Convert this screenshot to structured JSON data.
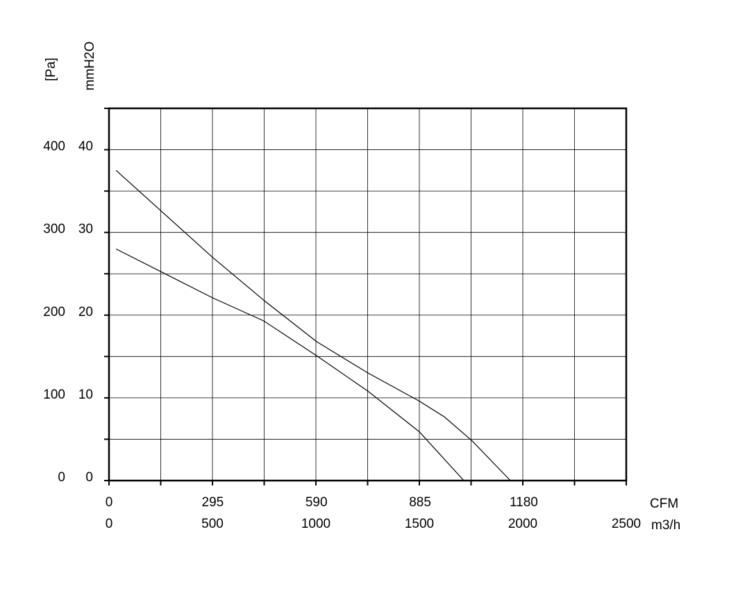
{
  "chart_data": {
    "type": "line",
    "ylabel": "[Pa]",
    "y2label": "mmH2O",
    "xlabel": "m3/h",
    "x2label": "CFM",
    "xlim": [
      0,
      2500
    ],
    "xticks": [
      0,
      500,
      1000,
      1500,
      2000,
      2500
    ],
    "x2lim": [
      0,
      1471.5
    ],
    "x2ticks": [
      0,
      295,
      590,
      885,
      1180
    ],
    "ylim": [
      0,
      450
    ],
    "yticks": [
      0,
      100,
      200,
      300,
      400
    ],
    "y2lim": [
      0,
      45
    ],
    "y2ticks": [
      0,
      10,
      20,
      30,
      40
    ],
    "xminor": [
      250,
      750,
      1250,
      1750,
      2250
    ],
    "yminor": [
      50,
      150,
      250,
      350,
      450
    ],
    "grid": true,
    "series": [
      {
        "color": "#000000",
        "x": [
          34,
          500,
          748,
          1003,
          1252,
          1500,
          1621,
          1755,
          1940
        ],
        "values": [
          375,
          270,
          218,
          168,
          130,
          96,
          77,
          48,
          0
        ]
      },
      {
        "color": "#000000",
        "x": [
          34,
          500,
          748,
          1003,
          1252,
          1500,
          1715
        ],
        "values": [
          280,
          221,
          193,
          151,
          108,
          59,
          0
        ]
      }
    ]
  }
}
